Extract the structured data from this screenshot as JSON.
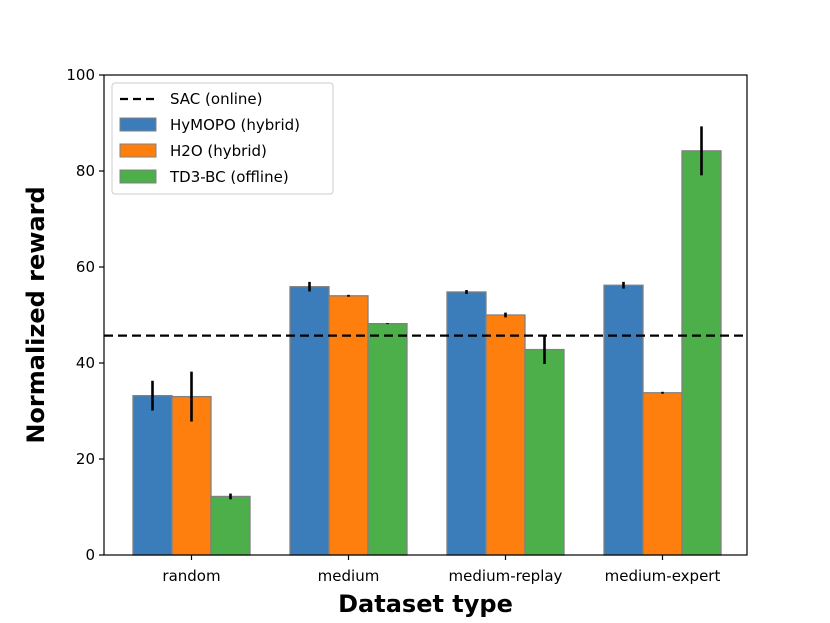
{
  "chart_data": {
    "type": "bar",
    "title": "",
    "xlabel": "Dataset type",
    "ylabel": "Normalized reward",
    "ylim": [
      0,
      100
    ],
    "yticks": [
      0,
      20,
      40,
      60,
      80,
      100
    ],
    "categories": [
      "random",
      "medium",
      "medium-replay",
      "medium-expert"
    ],
    "series": [
      {
        "name": "HyMOPO (hybrid)",
        "color": "#3a7dba",
        "values": [
          33.2,
          55.9,
          54.8,
          56.2
        ],
        "errors": [
          3.1,
          1.0,
          0.4,
          0.7
        ]
      },
      {
        "name": "H2O (hybrid)",
        "color": "#ff7f0e",
        "values": [
          33.0,
          54.0,
          50.0,
          33.8
        ],
        "errors": [
          5.2,
          0.2,
          0.5,
          0.2
        ]
      },
      {
        "name": "TD3-BC (offline)",
        "color": "#4daf4a",
        "values": [
          12.2,
          48.2,
          42.8,
          84.2
        ],
        "errors": [
          0.6,
          0.1,
          3.0,
          5.1
        ]
      }
    ],
    "reference_line": {
      "name": "SAC (online)",
      "value": 45.7,
      "style": "dashed",
      "color": "#000000"
    },
    "legend_position": "top-left",
    "grid": false
  }
}
